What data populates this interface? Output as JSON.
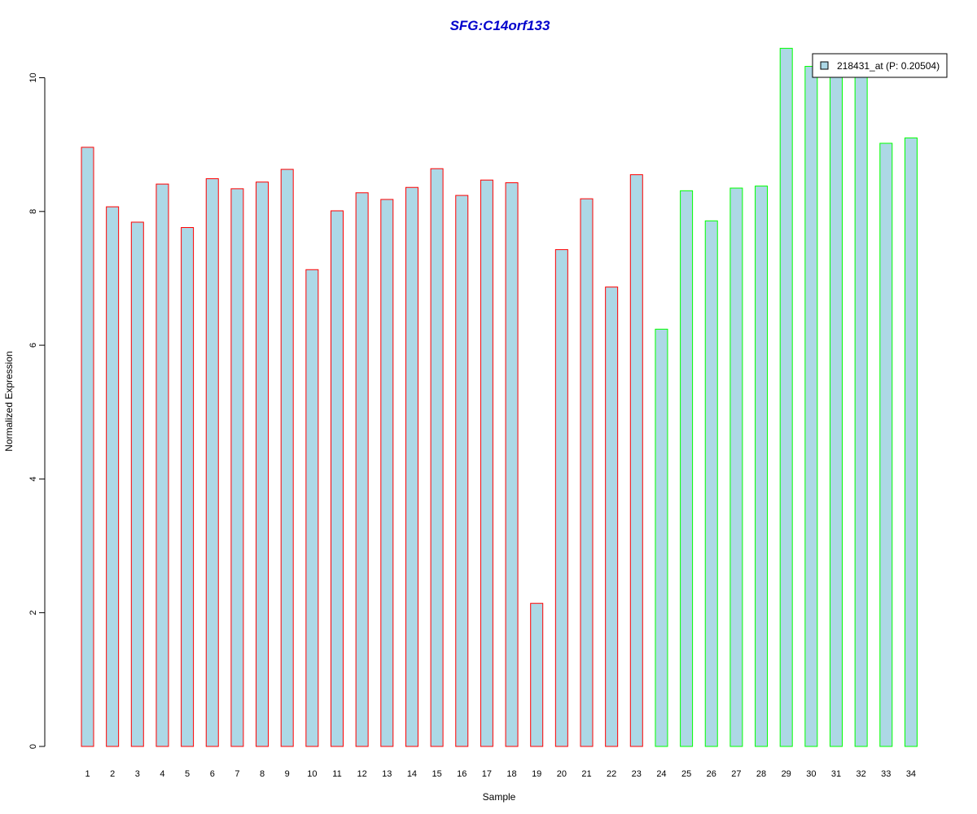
{
  "chart_data": {
    "type": "bar",
    "title": "SFG:C14orf133",
    "xlabel": "Sample",
    "ylabel": "Normalized Expression",
    "ylim": [
      0,
      10.45
    ],
    "yticks": [
      "0",
      "2",
      "4",
      "6",
      "8",
      "10"
    ],
    "categories": [
      "1",
      "2",
      "3",
      "4",
      "5",
      "6",
      "7",
      "8",
      "9",
      "10",
      "11",
      "12",
      "13",
      "14",
      "15",
      "16",
      "17",
      "18",
      "19",
      "20",
      "21",
      "22",
      "23",
      "24",
      "25",
      "26",
      "27",
      "28",
      "29",
      "30",
      "31",
      "32",
      "33",
      "34"
    ],
    "series": [
      {
        "name": "218431_at (P: 0.20504)",
        "values": [
          8.96,
          8.07,
          7.84,
          8.41,
          7.76,
          8.49,
          8.34,
          8.44,
          8.63,
          7.13,
          8.01,
          8.28,
          8.18,
          8.36,
          8.64,
          8.24,
          8.47,
          8.43,
          2.14,
          7.43,
          8.19,
          6.87,
          8.55,
          6.24,
          8.31,
          7.86,
          8.35,
          8.38,
          10.44,
          10.17,
          10.05,
          10.03,
          9.02,
          9.1
        ]
      }
    ],
    "group_sizes": [
      23,
      11
    ],
    "bar_fill": "#add8e6",
    "group_colors": [
      "#ff0000",
      "#00ff00"
    ],
    "title_color": "#0000cc",
    "grid": false,
    "legend_position": "top-right"
  }
}
